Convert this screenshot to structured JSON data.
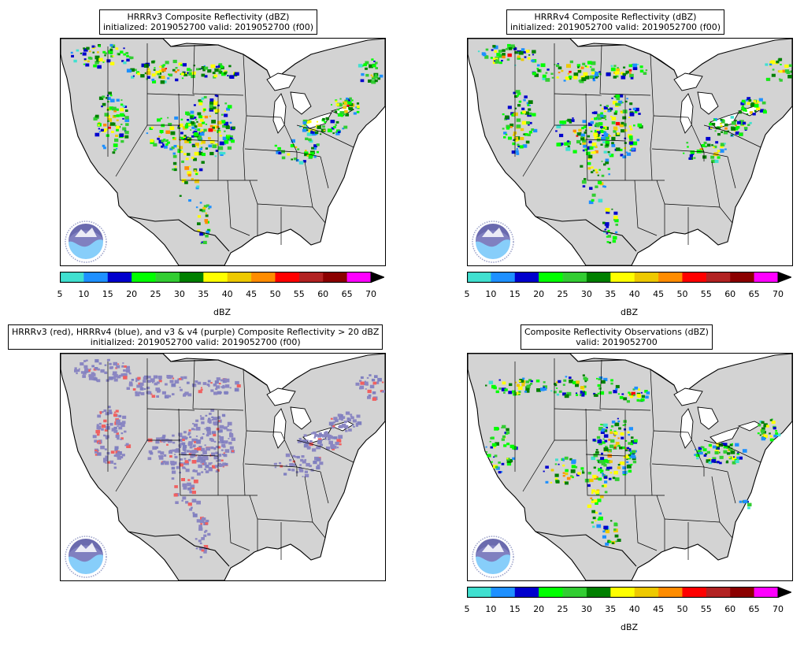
{
  "panels": [
    {
      "id": "p1",
      "title_line1": "HRRRv3 Composite Reflectivity (dBZ)",
      "title_line2": "initialized: 2019052700 valid: 2019052700 (f00)",
      "field": "reflectivity",
      "density": 0.9,
      "logo": "noaa-logo"
    },
    {
      "id": "p2",
      "title_line1": "HRRRv4 Composite Reflectivity (dBZ)",
      "title_line2": "initialized: 2019052700 valid: 2019052700 (f00)",
      "field": "reflectivity",
      "density": 0.85,
      "logo": "noaa-logo"
    },
    {
      "id": "p3",
      "title_line1": "HRRRv3 (red), HRRRv4 (blue), and v3 & v4 (purple) Composite Reflectivity > 20 dBZ",
      "title_line2": "initialized: 2019052700 valid: 2019052700 (f00)",
      "field": "overlap",
      "density": 1.0,
      "logo": "noaa-logo"
    },
    {
      "id": "p4",
      "title_line1": "Composite Reflectivity Observations (dBZ)",
      "title_line2": "valid: 2019052700",
      "field": "observations",
      "density": 0.75,
      "logo": "noaa-logo"
    }
  ],
  "colorbar": {
    "label": "dBZ",
    "ticks": [
      "5",
      "10",
      "15",
      "20",
      "25",
      "30",
      "35",
      "40",
      "45",
      "50",
      "55",
      "60",
      "65",
      "70"
    ],
    "colors": [
      "#40e0d0",
      "#1e90ff",
      "#0000cd",
      "#00ff00",
      "#32cd32",
      "#008000",
      "#ffff00",
      "#eec900",
      "#ff8c00",
      "#ff0000",
      "#b22222",
      "#8b0000",
      "#ff00ff"
    ],
    "extend_color": "#000000"
  },
  "map_colors": {
    "land": "#d3d3d3",
    "water": "#ffffff",
    "border": "#000000"
  },
  "overlap_colors": {
    "v3": "#f06060",
    "v4": "#8080c0",
    "both": "#8a86c2"
  }
}
